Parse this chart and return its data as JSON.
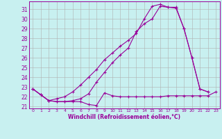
{
  "xlabel": "Windchill (Refroidissement éolien,°C)",
  "bg_color": "#c8f0f0",
  "line_color": "#990099",
  "grid_color": "#b0b0b0",
  "xlim": [
    -0.5,
    23.5
  ],
  "ylim": [
    20.8,
    31.8
  ],
  "yticks": [
    21,
    22,
    23,
    24,
    25,
    26,
    27,
    28,
    29,
    30,
    31
  ],
  "xticks": [
    0,
    1,
    2,
    3,
    4,
    5,
    6,
    7,
    8,
    9,
    10,
    11,
    12,
    13,
    14,
    15,
    16,
    17,
    18,
    19,
    20,
    21,
    22,
    23
  ],
  "line1_x": [
    0,
    1,
    2,
    3,
    4,
    5,
    6,
    7,
    8,
    9,
    10,
    11,
    12,
    13,
    14,
    15,
    16,
    17,
    18,
    19,
    20,
    21,
    22,
    23
  ],
  "line1_y": [
    22.8,
    22.2,
    21.6,
    21.5,
    21.5,
    21.5,
    21.5,
    21.2,
    21.1,
    22.4,
    22.1,
    22.0,
    22.0,
    22.0,
    22.0,
    22.0,
    22.0,
    22.1,
    22.1,
    22.1,
    22.1,
    22.1,
    22.1,
    22.5
  ],
  "line2_x": [
    0,
    1,
    2,
    3,
    4,
    5,
    6,
    7,
    8,
    9,
    10,
    11,
    12,
    13,
    14,
    15,
    16,
    17,
    18,
    19,
    20,
    21,
    22
  ],
  "line2_y": [
    22.8,
    22.2,
    21.6,
    21.8,
    22.0,
    22.5,
    23.2,
    24.0,
    24.8,
    25.8,
    26.5,
    27.2,
    27.8,
    28.5,
    30.0,
    31.3,
    31.5,
    31.2,
    31.2,
    29.0,
    26.0,
    22.8,
    22.5
  ],
  "line3_x": [
    0,
    1,
    2,
    3,
    4,
    5,
    6,
    7,
    8,
    9,
    10,
    11,
    12,
    13,
    14,
    15,
    16,
    17,
    18,
    19,
    20,
    21,
    22
  ],
  "line3_y": [
    22.8,
    22.2,
    21.6,
    21.5,
    21.5,
    21.6,
    21.8,
    22.3,
    23.5,
    24.5,
    25.5,
    26.3,
    27.0,
    28.7,
    29.5,
    30.0,
    31.3,
    31.2,
    31.1,
    29.0,
    26.0,
    22.8,
    22.5
  ]
}
